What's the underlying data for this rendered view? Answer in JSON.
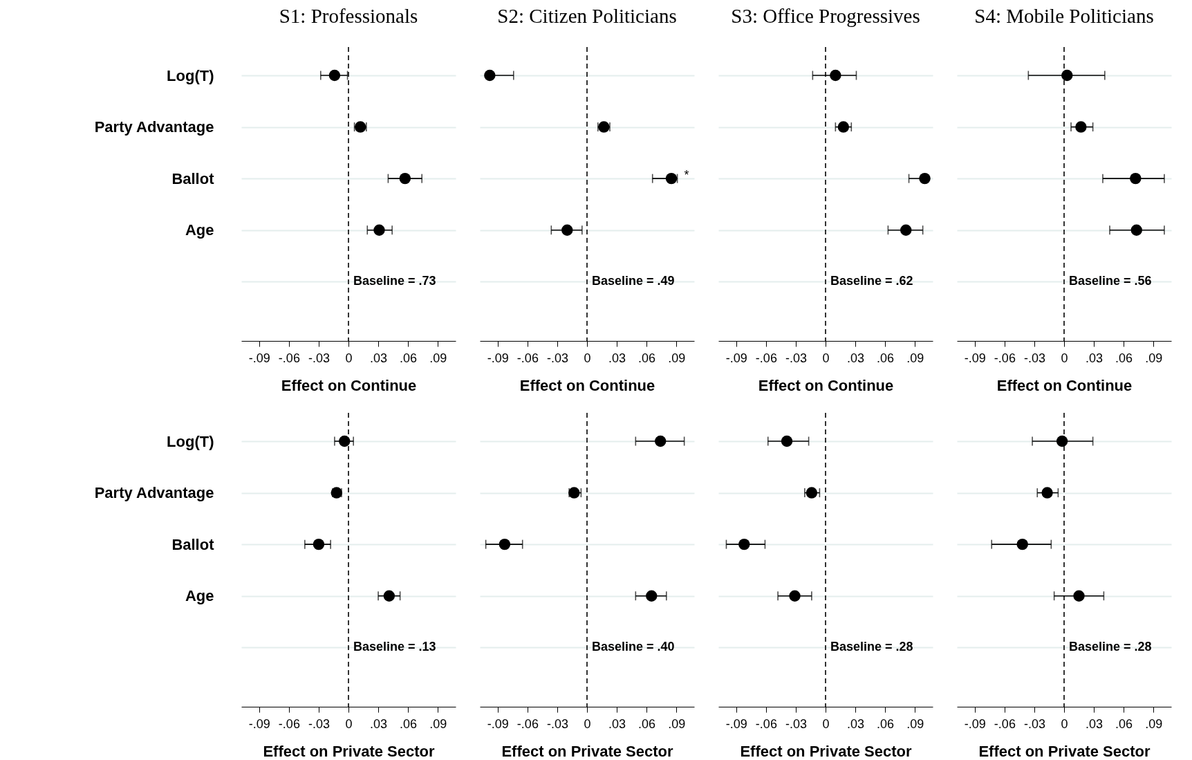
{
  "chart_data": [
    {
      "type": "scatter",
      "orientation": "horizontal",
      "title": "S1: Professionals",
      "xlabel": "Effect on Continue",
      "categories": [
        "Log(T)",
        "Party Advantage",
        "Ballot",
        "Age",
        null
      ],
      "values": [
        -0.014,
        0.012,
        0.057,
        0.031,
        null
      ],
      "errors": [
        [
          -0.028,
          -0.001
        ],
        [
          0.006,
          0.018
        ],
        [
          0.04,
          0.074
        ],
        [
          0.019,
          0.044
        ],
        null
      ],
      "color": "#000000",
      "marker": "circle",
      "xlim": [
        -0.108,
        0.108
      ],
      "xticks": [
        {
          "value": -0.09,
          "label": "-.09"
        },
        {
          "value": -0.06,
          "label": "-.06"
        },
        {
          "value": -0.03,
          "label": "-.03"
        },
        {
          "value": 0,
          "label": "0"
        },
        {
          "value": 0.03,
          "label": ".03"
        },
        {
          "value": 0.06,
          "label": ".06"
        },
        {
          "value": 0.09,
          "label": ".09"
        }
      ],
      "grid": "y",
      "ref_lines": [
        {
          "axis": "x",
          "value": 0,
          "line_style": "dashed"
        }
      ],
      "annotations": [
        "Baseline = .73"
      ]
    },
    {
      "type": "scatter",
      "orientation": "horizontal",
      "title": "S2: Citizen Politicians",
      "xlabel": "Effect on Continue",
      "categories": [
        "Log(T)",
        "Party Advantage",
        "Ballot",
        "Age",
        null
      ],
      "values": [
        -0.098,
        0.017,
        0.085,
        -0.02,
        null
      ],
      "errors": [
        [
          -0.098,
          -0.074
        ],
        [
          0.011,
          0.023
        ],
        [
          0.066,
          0.091
        ],
        [
          -0.036,
          -0.005
        ],
        null
      ],
      "color": "#000000",
      "marker": "circle",
      "xlim": [
        -0.108,
        0.108
      ],
      "xticks": [
        {
          "value": -0.09,
          "label": "-.09"
        },
        {
          "value": -0.06,
          "label": "-.06"
        },
        {
          "value": -0.03,
          "label": "-.03"
        },
        {
          "value": 0,
          "label": "0"
        },
        {
          "value": 0.03,
          "label": ".03"
        },
        {
          "value": 0.06,
          "label": ".06"
        },
        {
          "value": 0.09,
          "label": ".09"
        }
      ],
      "grid": "y",
      "tick_labels": "x",
      "ref_lines": [
        {
          "axis": "x",
          "value": 0,
          "line_style": "dashed"
        }
      ],
      "annotations": [
        "Baseline = .49",
        {
          "text": "*",
          "x": 0.091,
          "y": "Ballot"
        }
      ]
    },
    {
      "type": "scatter",
      "orientation": "horizontal",
      "title": "S3: Office Progressives",
      "xlabel": "Effect on Continue",
      "categories": [
        "Log(T)",
        "Party Advantage",
        "Ballot",
        "Age",
        null
      ],
      "values": [
        0.01,
        0.018,
        0.1,
        0.081,
        null
      ],
      "errors": [
        [
          -0.013,
          0.031
        ],
        [
          0.01,
          0.026
        ],
        [
          0.084,
          0.1
        ],
        [
          0.063,
          0.098
        ],
        null
      ],
      "color": "#000000",
      "marker": "circle",
      "xlim": [
        -0.108,
        0.108
      ],
      "xticks": [
        {
          "value": -0.09,
          "label": "-.09"
        },
        {
          "value": -0.06,
          "label": "-.06"
        },
        {
          "value": -0.03,
          "label": "-.03"
        },
        {
          "value": 0,
          "label": "0"
        },
        {
          "value": 0.03,
          "label": ".03"
        },
        {
          "value": 0.06,
          "label": ".06"
        },
        {
          "value": 0.09,
          "label": ".09"
        }
      ],
      "grid": "y",
      "tick_labels": "x",
      "ref_lines": [
        {
          "axis": "x",
          "value": 0,
          "line_style": "dashed"
        }
      ],
      "annotations": [
        "Baseline = .62"
      ]
    },
    {
      "type": "scatter",
      "orientation": "horizontal",
      "title": "S4: Mobile Politicians",
      "xlabel": "Effect on Continue",
      "categories": [
        "Log(T)",
        "Party Advantage",
        "Ballot",
        "Age",
        null
      ],
      "values": [
        0.003,
        0.017,
        0.072,
        0.073,
        null
      ],
      "errors": [
        [
          -0.036,
          0.041
        ],
        [
          0.007,
          0.029
        ],
        [
          0.039,
          0.101
        ],
        [
          0.046,
          0.101
        ],
        null
      ],
      "color": "#000000",
      "marker": "circle",
      "xlim": [
        -0.108,
        0.108
      ],
      "xticks": [
        {
          "value": -0.09,
          "label": "-.09"
        },
        {
          "value": -0.06,
          "label": "-.06"
        },
        {
          "value": -0.03,
          "label": "-.03"
        },
        {
          "value": 0,
          "label": "0"
        },
        {
          "value": 0.03,
          "label": ".03"
        },
        {
          "value": 0.06,
          "label": ".06"
        },
        {
          "value": 0.09,
          "label": ".09"
        }
      ],
      "grid": "y",
      "tick_labels": "x",
      "ref_lines": [
        {
          "axis": "x",
          "value": 0,
          "line_style": "dashed"
        }
      ],
      "annotations": [
        "Baseline = .56"
      ]
    },
    {
      "type": "scatter",
      "orientation": "horizontal",
      "xlabel": "Effect on Private Sector",
      "categories": [
        "Log(T)",
        "Party Advantage",
        "Ballot",
        "Age",
        null
      ],
      "values": [
        -0.004,
        -0.012,
        -0.03,
        0.041,
        null
      ],
      "errors": [
        [
          -0.014,
          0.005
        ],
        [
          -0.016,
          -0.007
        ],
        [
          -0.044,
          -0.018
        ],
        [
          0.03,
          0.052
        ],
        null
      ],
      "color": "#000000",
      "marker": "circle",
      "xlim": [
        -0.108,
        0.108
      ],
      "xticks": [
        {
          "value": -0.09,
          "label": "-.09"
        },
        {
          "value": -0.06,
          "label": "-.06"
        },
        {
          "value": -0.03,
          "label": "-.03"
        },
        {
          "value": 0,
          "label": "0"
        },
        {
          "value": 0.03,
          "label": ".03"
        },
        {
          "value": 0.06,
          "label": ".06"
        },
        {
          "value": 0.09,
          "label": ".09"
        }
      ],
      "grid": "y",
      "ref_lines": [
        {
          "axis": "x",
          "value": 0,
          "line_style": "dashed"
        }
      ],
      "annotations": [
        "Baseline = .13"
      ]
    },
    {
      "type": "scatter",
      "orientation": "horizontal",
      "xlabel": "Effect on Private Sector",
      "categories": [
        "Log(T)",
        "Party Advantage",
        "Ballot",
        "Age",
        null
      ],
      "values": [
        0.074,
        -0.013,
        -0.083,
        0.065,
        null
      ],
      "errors": [
        [
          0.049,
          0.098
        ],
        [
          -0.018,
          -0.006
        ],
        [
          -0.102,
          -0.065
        ],
        [
          0.049,
          0.08
        ],
        null
      ],
      "color": "#000000",
      "marker": "circle",
      "xlim": [
        -0.108,
        0.108
      ],
      "xticks": [
        {
          "value": -0.09,
          "label": "-.09"
        },
        {
          "value": -0.06,
          "label": "-.06"
        },
        {
          "value": -0.03,
          "label": "-.03"
        },
        {
          "value": 0,
          "label": "0"
        },
        {
          "value": 0.03,
          "label": ".03"
        },
        {
          "value": 0.06,
          "label": ".06"
        },
        {
          "value": 0.09,
          "label": ".09"
        }
      ],
      "grid": "y",
      "tick_labels": "x",
      "ref_lines": [
        {
          "axis": "x",
          "value": 0,
          "line_style": "dashed"
        }
      ],
      "annotations": [
        "Baseline = .40"
      ]
    },
    {
      "type": "scatter",
      "orientation": "horizontal",
      "xlabel": "Effect on Private Sector",
      "categories": [
        "Log(T)",
        "Party Advantage",
        "Ballot",
        "Age",
        null
      ],
      "values": [
        -0.039,
        -0.014,
        -0.082,
        -0.031,
        null
      ],
      "errors": [
        [
          -0.058,
          -0.017
        ],
        [
          -0.021,
          -0.006
        ],
        [
          -0.1,
          -0.061
        ],
        [
          -0.048,
          -0.014
        ],
        null
      ],
      "color": "#000000",
      "marker": "circle",
      "xlim": [
        -0.108,
        0.108
      ],
      "xticks": [
        {
          "value": -0.09,
          "label": "-.09"
        },
        {
          "value": -0.06,
          "label": "-.06"
        },
        {
          "value": -0.03,
          "label": "-.03"
        },
        {
          "value": 0,
          "label": "0"
        },
        {
          "value": 0.03,
          "label": ".03"
        },
        {
          "value": 0.06,
          "label": ".06"
        },
        {
          "value": 0.09,
          "label": ".09"
        }
      ],
      "grid": "y",
      "tick_labels": "x",
      "ref_lines": [
        {
          "axis": "x",
          "value": 0,
          "line_style": "dashed"
        }
      ],
      "annotations": [
        "Baseline = .28"
      ]
    },
    {
      "type": "scatter",
      "orientation": "horizontal",
      "xlabel": "Effect on Private Sector",
      "categories": [
        "Log(T)",
        "Party Advantage",
        "Ballot",
        "Age",
        null
      ],
      "values": [
        -0.002,
        -0.017,
        -0.042,
        0.015,
        null
      ],
      "errors": [
        [
          -0.032,
          0.029
        ],
        [
          -0.027,
          -0.006
        ],
        [
          -0.073,
          -0.013
        ],
        [
          -0.01,
          0.04
        ],
        null
      ],
      "color": "#000000",
      "marker": "circle",
      "xlim": [
        -0.108,
        0.108
      ],
      "xticks": [
        {
          "value": -0.09,
          "label": "-.09"
        },
        {
          "value": -0.06,
          "label": "-.06"
        },
        {
          "value": -0.03,
          "label": "-.03"
        },
        {
          "value": 0,
          "label": "0"
        },
        {
          "value": 0.03,
          "label": ".03"
        },
        {
          "value": 0.06,
          "label": ".06"
        },
        {
          "value": 0.09,
          "label": ".09"
        }
      ],
      "grid": "y",
      "tick_labels": "x",
      "ref_lines": [
        {
          "axis": "x",
          "value": 0,
          "line_style": "dashed"
        }
      ],
      "annotations": [
        "Baseline = .28"
      ]
    }
  ]
}
